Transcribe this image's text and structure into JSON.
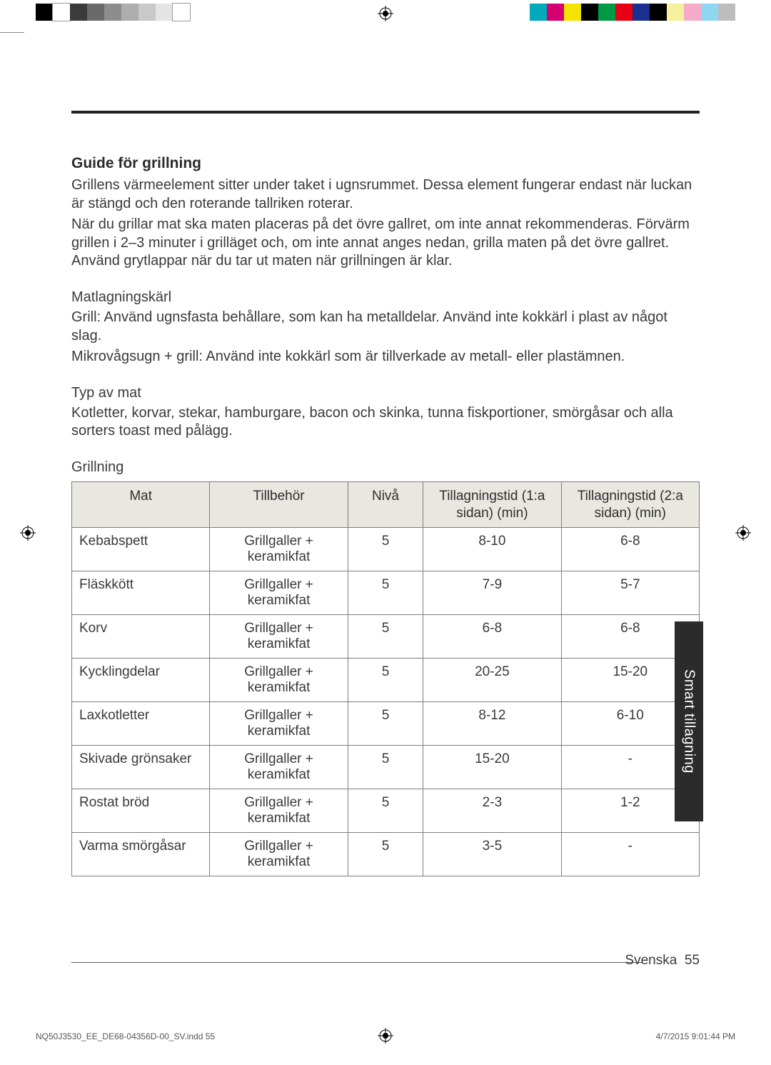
{
  "print_marks": {
    "left_swatches": [
      "#000000",
      "#ffffff",
      "#3b3b3b",
      "#6a6a6a",
      "#8d8d8d",
      "#adadad",
      "#c9c9c9",
      "#e4e4e4",
      "#ffffff"
    ],
    "right_swatches": [
      "#00aaba",
      "#d4006f",
      "#f5e400",
      "#000000",
      "#009944",
      "#e60012",
      "#1b2f8f",
      "#000000",
      "#f6ef9e",
      "#f5abc9",
      "#8fd7f0",
      "#bdbdbd"
    ]
  },
  "section": {
    "title": "Guide för grillning",
    "intro1": "Grillens värmeelement sitter under taket i ugnsrummet. Dessa element fungerar endast när luckan är stängd och den roterande tallriken roterar.",
    "intro2": "När du grillar mat ska maten placeras på det övre gallret, om inte annat rekommenderas. Förvärm grillen i 2–3 minuter i grilläget och, om inte annat anges nedan, grilla maten på det övre gallret. Använd grytlappar när du tar ut maten när grillningen är klar.",
    "cookware_head": "Matlagningskärl",
    "cookware_p1": "Grill: Använd ugnsfasta behållare, som kan ha metalldelar. Använd inte kokkärl i plast av något slag.",
    "cookware_p2": "Mikrovågsugn + grill: Använd inte kokkärl som är tillverkade av metall- eller plastämnen.",
    "foodtype_head": "Typ av mat",
    "foodtype_p": "Kotletter, korvar, stekar, hamburgare, bacon och skinka, tunna fiskportioner, smörgåsar och alla sorters toast med pålägg.",
    "tablelabel": "Grillning"
  },
  "table": {
    "columns": [
      "Mat",
      "Tillbehör",
      "Nivå",
      "Tillagningstid (1:a sidan) (min)",
      "Tillagningstid (2:a sidan) (min)"
    ],
    "col_widths": [
      "22%",
      "22%",
      "12%",
      "22%",
      "22%"
    ],
    "header_bg": "#e8e7e0",
    "border_color": "#7d7d7d",
    "rows": [
      {
        "food": "Kebabspett",
        "acc": "Grillgaller + keramikfat",
        "level": "5",
        "t1": "8-10",
        "t2": "6-8"
      },
      {
        "food": "Fläskkött",
        "acc": "Grillgaller + keramikfat",
        "level": "5",
        "t1": "7-9",
        "t2": "5-7"
      },
      {
        "food": "Korv",
        "acc": "Grillgaller + keramikfat",
        "level": "5",
        "t1": "6-8",
        "t2": "6-8"
      },
      {
        "food": "Kycklingdelar",
        "acc": "Grillgaller + keramikfat",
        "level": "5",
        "t1": "20-25",
        "t2": "15-20"
      },
      {
        "food": "Laxkotletter",
        "acc": "Grillgaller + keramikfat",
        "level": "5",
        "t1": "8-12",
        "t2": "6-10"
      },
      {
        "food": "Skivade grönsaker",
        "acc": "Grillgaller + keramikfat",
        "level": "5",
        "t1": "15-20",
        "t2": "-"
      },
      {
        "food": "Rostat bröd",
        "acc": "Grillgaller + keramikfat",
        "level": "5",
        "t1": "2-3",
        "t2": "1-2"
      },
      {
        "food": "Varma smörgåsar",
        "acc": "Grillgaller + keramikfat",
        "level": "5",
        "t1": "3-5",
        "t2": "-"
      }
    ]
  },
  "sidetab": "Smart tillagning",
  "footer": {
    "lang": "Svenska",
    "page": "55",
    "imprint_file": "NQ50J3530_EE_DE68-04356D-00_SV.indd   55",
    "imprint_time": "4/7/2015   9:01:44 PM"
  }
}
